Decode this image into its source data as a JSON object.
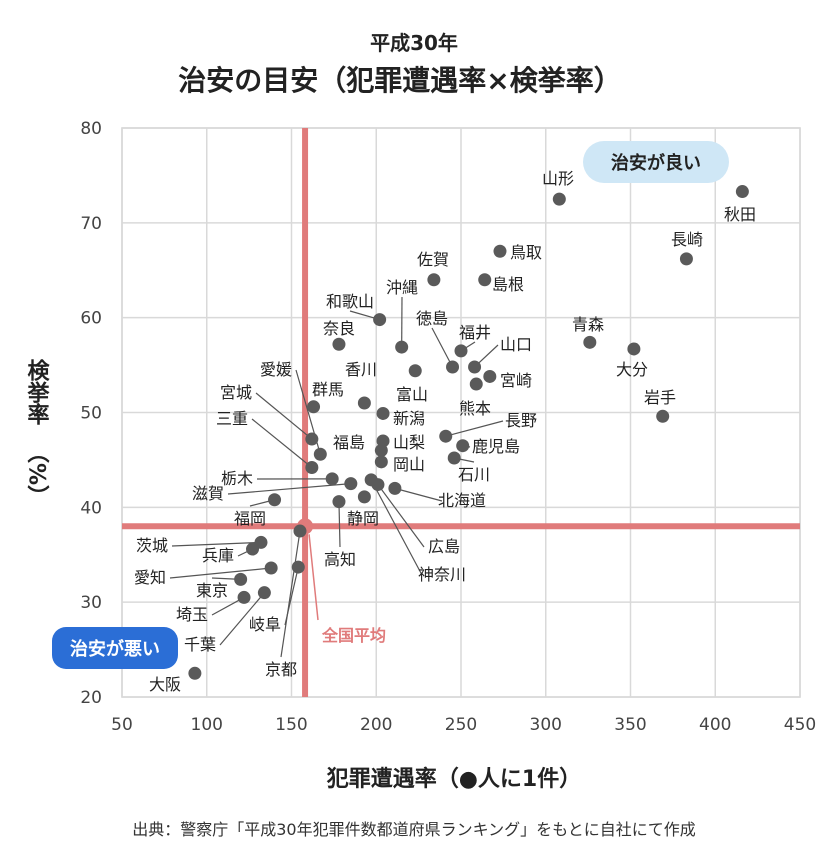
{
  "chart_data": {
    "type": "scatter",
    "title": "平成30年",
    "subtitle": "治安の目安（犯罪遭遇率×検挙率）",
    "xlabel": "犯罪遭遇率（●人に1件）",
    "ylabel": "検挙率",
    "ylabel_unit": "（%）",
    "xlim": [
      50,
      450
    ],
    "ylim": [
      20,
      80
    ],
    "x_ticks": [
      "50",
      "100",
      "150",
      "200",
      "250",
      "300",
      "350",
      "400",
      "450"
    ],
    "y_ticks": [
      "20",
      "30",
      "40",
      "50",
      "60",
      "70",
      "80"
    ],
    "grid": true,
    "reference_lines": {
      "x": 158,
      "y": 38,
      "label": "全国平均"
    },
    "annotations": {
      "good": "治安が良い",
      "bad": "治安が悪い"
    },
    "points": [
      {
        "label": "秋田",
        "x": 416,
        "y": 73.3
      },
      {
        "label": "山形",
        "x": 308,
        "y": 72.5
      },
      {
        "label": "長崎",
        "x": 383,
        "y": 66.2
      },
      {
        "label": "鳥取",
        "x": 273,
        "y": 67.0
      },
      {
        "label": "島根",
        "x": 264,
        "y": 64.0
      },
      {
        "label": "佐賀",
        "x": 234,
        "y": 64.0
      },
      {
        "label": "和歌山",
        "x": 202,
        "y": 59.8
      },
      {
        "label": "沖縄",
        "x": 215,
        "y": 56.9
      },
      {
        "label": "奈良",
        "x": 178,
        "y": 57.2
      },
      {
        "label": "青森",
        "x": 326,
        "y": 57.4
      },
      {
        "label": "大分",
        "x": 352,
        "y": 56.7
      },
      {
        "label": "岩手",
        "x": 369,
        "y": 49.6
      },
      {
        "label": "徳島",
        "x": 245,
        "y": 54.8
      },
      {
        "label": "福井",
        "x": 250,
        "y": 56.5
      },
      {
        "label": "山口",
        "x": 258,
        "y": 54.8
      },
      {
        "label": "宮崎",
        "x": 267,
        "y": 53.8
      },
      {
        "label": "熊本",
        "x": 259,
        "y": 53.0
      },
      {
        "label": "香川",
        "x": 193,
        "y": 51.0
      },
      {
        "label": "富山",
        "x": 223,
        "y": 54.4
      },
      {
        "label": "群馬",
        "x": 163,
        "y": 50.6
      },
      {
        "label": "新潟",
        "x": 204,
        "y": 49.9
      },
      {
        "label": "愛媛",
        "x": 167,
        "y": 45.6
      },
      {
        "label": "宮城",
        "x": 162,
        "y": 47.2
      },
      {
        "label": "三重",
        "x": 162,
        "y": 44.2
      },
      {
        "label": "長野",
        "x": 241,
        "y": 47.5
      },
      {
        "label": "鹿児島",
        "x": 251,
        "y": 46.5
      },
      {
        "label": "石川",
        "x": 246,
        "y": 45.2
      },
      {
        "label": "福島",
        "x": 204,
        "y": 47.0
      },
      {
        "label": "山梨",
        "x": 203,
        "y": 46.0
      },
      {
        "label": "岡山",
        "x": 203,
        "y": 44.8
      },
      {
        "label": "栃木",
        "x": 174,
        "y": 43.0
      },
      {
        "label": "滋賀",
        "x": 185,
        "y": 42.5
      },
      {
        "label": "福岡",
        "x": 140,
        "y": 40.8
      },
      {
        "label": "静岡",
        "x": 193,
        "y": 41.1
      },
      {
        "label": "北海道",
        "x": 211,
        "y": 42.0
      },
      {
        "label": "広島",
        "x": 201,
        "y": 42.4
      },
      {
        "label": "神奈川",
        "x": 197,
        "y": 42.9
      },
      {
        "label": "高知",
        "x": 178,
        "y": 40.6
      },
      {
        "label": "茨城",
        "x": 132,
        "y": 36.3
      },
      {
        "label": "兵庫",
        "x": 127,
        "y": 35.6
      },
      {
        "label": "愛知",
        "x": 138,
        "y": 33.6
      },
      {
        "label": "東京",
        "x": 120,
        "y": 32.4
      },
      {
        "label": "埼玉",
        "x": 122,
        "y": 30.5
      },
      {
        "label": "千葉",
        "x": 134,
        "y": 31.0
      },
      {
        "label": "岐阜",
        "x": 154,
        "y": 33.7
      },
      {
        "label": "京都",
        "x": 155,
        "y": 37.5
      },
      {
        "label": "大阪",
        "x": 93,
        "y": 22.5
      }
    ]
  },
  "source": "出典：警察庁「平成30年犯罪件数都道府県ランキング」をもとに自社にて作成"
}
